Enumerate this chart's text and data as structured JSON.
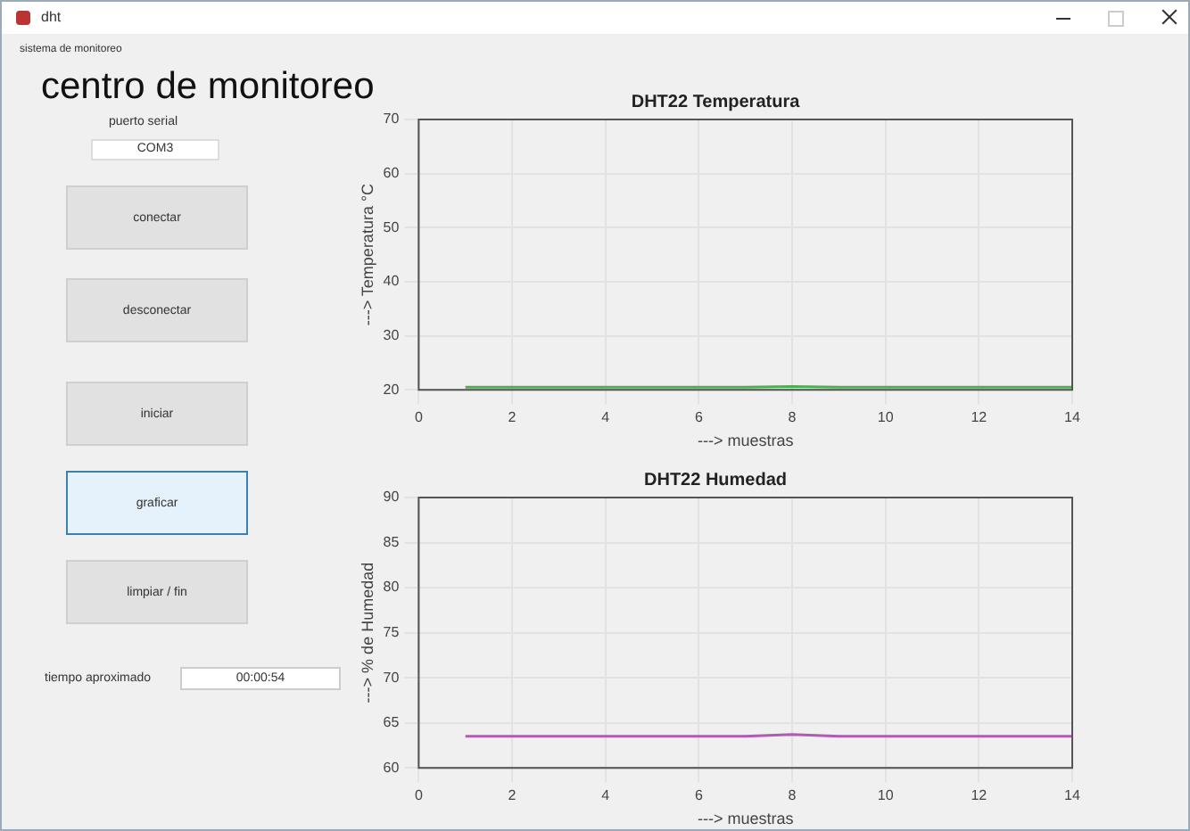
{
  "chart_data": [
    {
      "type": "other",
      "annotations": [
        "dht",
        "sistema de monitoreo",
        "centro de monitoreo",
        "puerto serial",
        "COM3",
        "conectar",
        "desconectar",
        "iniciar",
        "graficar",
        "limpiar / fin",
        "tiempo aproximado",
        "00:00:54"
      ]
    },
    {
      "type": "line",
      "title": "DHT22 Temperatura",
      "xlabel": "---> muestras",
      "ylabel": "---> Temperatura °C",
      "x": [
        1,
        2,
        3,
        4,
        5,
        6,
        7,
        8,
        9,
        10,
        11,
        12,
        13,
        14
      ],
      "series": [
        {
          "color": "#4caf50",
          "values": [
            20.5,
            20.5,
            20.5,
            20.5,
            20.5,
            20.5,
            20.5,
            20.6,
            20.5,
            20.5,
            20.5,
            20.5,
            20.5,
            20.5
          ]
        }
      ],
      "xlim": [
        0,
        14
      ],
      "xticks": [
        0,
        2,
        4,
        6,
        8,
        10,
        12,
        14
      ],
      "ylim": [
        20,
        70
      ],
      "yticks": [
        20,
        30,
        40,
        50,
        60,
        70
      ],
      "grid": true
    },
    {
      "type": "line",
      "title": "DHT22 Humedad",
      "xlabel": "---> muestras",
      "ylabel": "---> % de Humedad",
      "x": [
        1,
        2,
        3,
        4,
        5,
        6,
        7,
        8,
        9,
        10,
        11,
        12,
        13,
        14
      ],
      "series": [
        {
          "color": "#b05cb0",
          "values": [
            63.5,
            63.5,
            63.5,
            63.5,
            63.5,
            63.5,
            63.5,
            63.7,
            63.5,
            63.5,
            63.5,
            63.5,
            63.5,
            63.5
          ]
        }
      ],
      "xlim": [
        0,
        14
      ],
      "xticks": [
        0,
        2,
        4,
        6,
        8,
        10,
        12,
        14
      ],
      "ylim": [
        60,
        90
      ],
      "yticks": [
        60,
        65,
        70,
        75,
        80,
        85,
        90
      ],
      "grid": true
    }
  ]
}
